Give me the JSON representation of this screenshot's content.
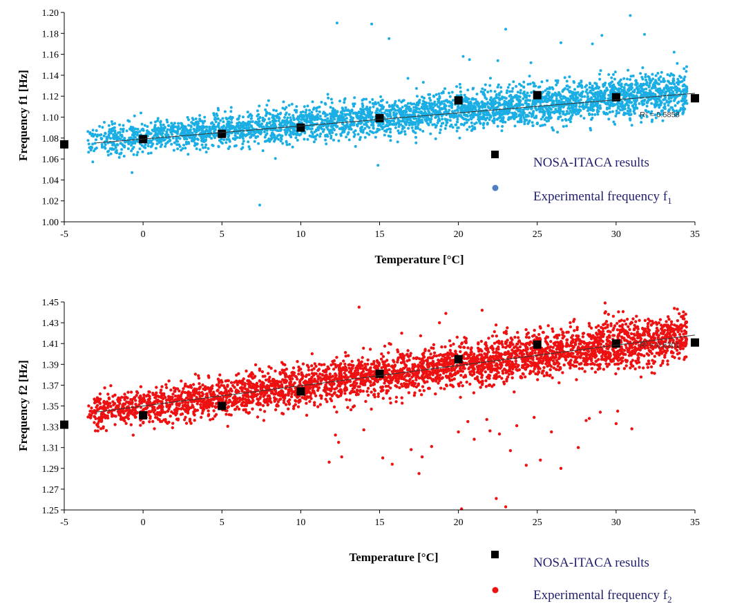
{
  "colors": {
    "experimental_f1": "#1aaee4",
    "experimental_f2": "#ee1111",
    "legend_dot_f1": "#4f7fc2",
    "legend_dot_f2": "#ee1111",
    "nosa_marker": "#000000",
    "trendline": "#333333",
    "axis": "#000000",
    "legend_text": "#1f1f6e"
  },
  "chart_data": [
    {
      "type": "scatter",
      "xlabel": "Temperature [°C]",
      "ylabel": "Frequency f1 [Hz]",
      "xlim": [
        -5,
        35
      ],
      "ylim": [
        1.0,
        1.2
      ],
      "x_ticks": [
        "-5",
        "0",
        "5",
        "10",
        "15",
        "20",
        "25",
        "30",
        "35"
      ],
      "y_ticks": [
        "1.00",
        "1.02",
        "1.04",
        "1.06",
        "1.08",
        "1.10",
        "1.12",
        "1.14",
        "1.16",
        "1.18",
        "1.20"
      ],
      "grid": false,
      "legend_position": "right",
      "series": [
        {
          "name": "NOSA-ITACA results",
          "marker": "square",
          "x": [
            -5,
            0,
            5,
            10,
            15,
            20,
            25,
            30,
            35
          ],
          "y": [
            1.074,
            1.079,
            1.084,
            1.09,
            1.099,
            1.116,
            1.121,
            1.119,
            1.118
          ]
        },
        {
          "name": "Experimental frequency f",
          "name_subscript": "1",
          "marker": "dot",
          "x_range": [
            -3.5,
            34.5
          ],
          "cloud_center": {
            "slope": 0.00125,
            "intercept": 1.081
          },
          "spread": 0.0095,
          "outliers": {
            "x": [
              12.3,
              14.5,
              15.6,
              23.0,
              30.9,
              31.8,
              26.5,
              28.5,
              29.1,
              20.3,
              20.7,
              22.5,
              24.6,
              7.4,
              -0.7,
              16.8,
              14.9
            ],
            "y": [
              1.19,
              1.189,
              1.175,
              1.184,
              1.197,
              1.179,
              1.171,
              1.17,
              1.178,
              1.158,
              1.155,
              1.154,
              1.152,
              1.016,
              1.047,
              1.137,
              1.054
            ]
          }
        }
      ],
      "trendline": {
        "x": [
          -3,
          35
        ],
        "y": [
          1.0753,
          1.1228
        ],
        "label": "R² = 0.5858",
        "label_at": [
          31.5,
          1.1
        ]
      }
    },
    {
      "type": "scatter",
      "xlabel": "Temperature [°C]",
      "ylabel": "Frequency f2 [Hz]",
      "xlim": [
        -5,
        35
      ],
      "ylim": [
        1.25,
        1.45
      ],
      "x_ticks": [
        "-5",
        "0",
        "5",
        "10",
        "15",
        "20",
        "25",
        "30",
        "35"
      ],
      "y_ticks": [
        "1.25",
        "1.27",
        "1.29",
        "1.31",
        "1.33",
        "1.35",
        "1.37",
        "1.39",
        "1.41",
        "1.43",
        "1.45"
      ],
      "grid": false,
      "legend_position": "bottom-right",
      "series": [
        {
          "name": "NOSA-ITACA results",
          "marker": "square",
          "x": [
            -5,
            0,
            5,
            10,
            15,
            20,
            25,
            30,
            35
          ],
          "y": [
            1.332,
            1.341,
            1.35,
            1.364,
            1.381,
            1.395,
            1.409,
            1.41,
            1.411
          ]
        },
        {
          "name": "Experimental frequency f",
          "name_subscript": "2",
          "marker": "dot",
          "x_range": [
            -3.5,
            34.5
          ],
          "cloud_center": {
            "slope": 0.00195,
            "intercept": 1.35
          },
          "spread": 0.011,
          "outliers": {
            "x": [
              11.8,
              12.2,
              12.4,
              12.6,
              14.0,
              15.2,
              15.8,
              17.0,
              17.5,
              17.7,
              18.3,
              20.0,
              20.2,
              20.6,
              21.0,
              21.8,
              22.0,
              22.4,
              22.6,
              23.0,
              23.3,
              23.7,
              24.3,
              24.8,
              25.2,
              25.9,
              26.5,
              27.6,
              28.1,
              28.3,
              29.0,
              30.0,
              30.1,
              31.0,
              13.7,
              16.4,
              18.8,
              19.2,
              21.5,
              29.3
            ],
            "y": [
              1.296,
              1.322,
              1.315,
              1.301,
              1.327,
              1.3,
              1.294,
              1.308,
              1.285,
              1.301,
              1.311,
              1.325,
              1.251,
              1.335,
              1.318,
              1.337,
              1.326,
              1.261,
              1.323,
              1.253,
              1.307,
              1.331,
              1.293,
              1.339,
              1.298,
              1.325,
              1.29,
              1.31,
              1.336,
              1.338,
              1.344,
              1.333,
              1.345,
              1.328,
              1.445,
              1.42,
              1.43,
              1.439,
              1.442,
              1.449
            ]
          }
        }
      ],
      "trendline": {
        "x": [
          -3,
          35
        ],
        "y": [
          1.3441,
          1.4182
        ],
        "label": "R² = 0.6301",
        "label_at": [
          31.5,
          1.406
        ]
      }
    }
  ]
}
